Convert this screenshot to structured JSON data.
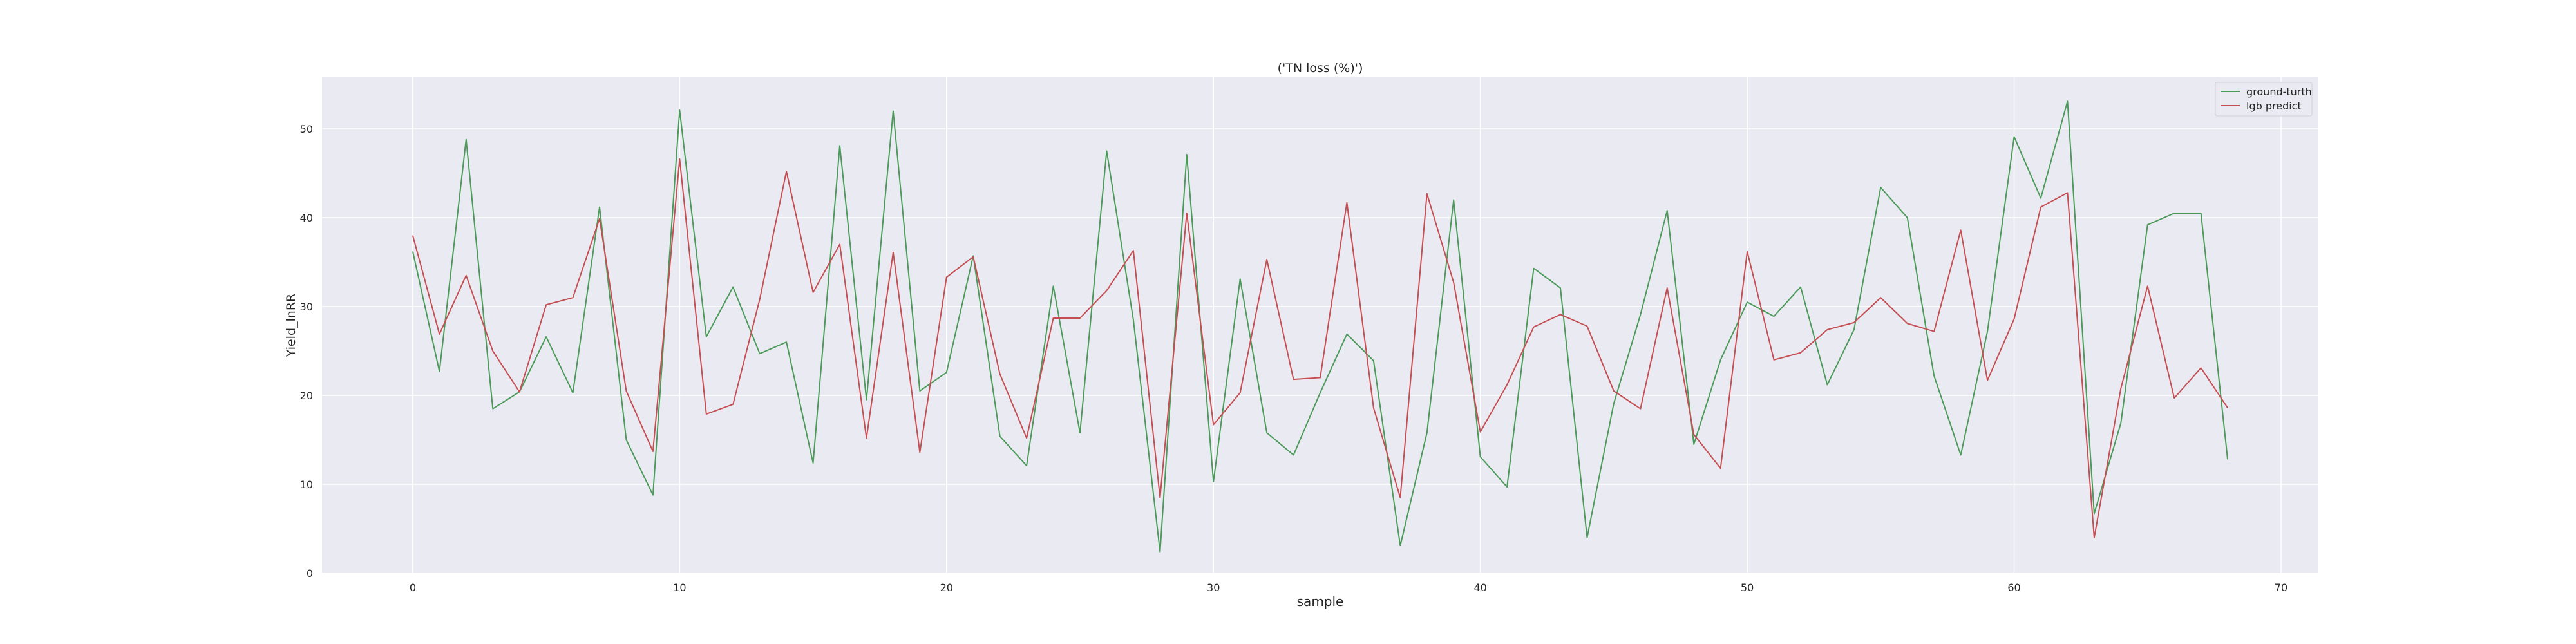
{
  "chart_data": {
    "type": "line",
    "title": "('TN loss (%)')",
    "xlabel": "sample",
    "ylabel": "Yield_lnRR",
    "xlim": [
      -3.4,
      71.4
    ],
    "ylim": [
      0,
      55.8
    ],
    "xticks": [
      0,
      10,
      20,
      30,
      40,
      50,
      60,
      70
    ],
    "yticks": [
      0,
      10,
      20,
      30,
      40,
      50
    ],
    "grid": true,
    "legend_position": "top-right",
    "x": [
      0,
      1,
      2,
      3,
      4,
      5,
      6,
      7,
      8,
      9,
      10,
      11,
      12,
      13,
      14,
      15,
      16,
      17,
      18,
      19,
      20,
      21,
      22,
      23,
      24,
      25,
      26,
      27,
      28,
      29,
      30,
      31,
      32,
      33,
      34,
      35,
      36,
      37,
      38,
      39,
      40,
      41,
      42,
      43,
      44,
      45,
      46,
      47,
      48,
      49,
      50,
      51,
      52,
      53,
      54,
      55,
      56,
      57,
      58,
      59,
      60,
      61,
      62,
      63,
      64,
      65,
      66,
      67,
      68
    ],
    "series": [
      {
        "name": "ground-turth",
        "color": "#4c9a5a",
        "values": [
          36.2,
          22.7,
          48.8,
          18.5,
          20.4,
          26.6,
          20.3,
          41.2,
          15.0,
          8.8,
          52.1,
          26.6,
          32.2,
          24.7,
          26.0,
          12.4,
          48.1,
          19.5,
          52.0,
          20.5,
          22.6,
          35.7,
          15.4,
          12.1,
          32.3,
          15.8,
          47.5,
          28.5,
          2.4,
          47.1,
          10.3,
          33.1,
          15.8,
          13.3,
          20.3,
          26.9,
          23.9,
          3.1,
          15.8,
          42.0,
          13.1,
          9.7,
          34.3,
          32.1,
          4.0,
          19.1,
          29.1,
          40.8,
          14.5,
          24.0,
          30.5,
          28.9,
          32.2,
          21.2,
          27.4,
          43.4,
          40.0,
          22.2,
          13.3,
          27.2,
          49.1,
          42.2,
          53.1,
          6.7,
          16.9,
          39.2,
          40.5,
          40.5,
          12.8
        ]
      },
      {
        "name": "lgb predict",
        "color": "#c44e52",
        "values": [
          38.0,
          26.9,
          33.5,
          25.0,
          20.4,
          30.2,
          31.0,
          39.9,
          20.5,
          13.7,
          46.6,
          17.9,
          19.0,
          30.8,
          45.2,
          31.6,
          37.0,
          15.2,
          36.1,
          13.6,
          33.3,
          35.6,
          22.4,
          15.2,
          28.7,
          28.7,
          31.8,
          36.3,
          8.5,
          40.5,
          16.7,
          20.3,
          35.3,
          21.8,
          22.0,
          41.7,
          18.6,
          8.5,
          42.7,
          32.7,
          15.9,
          21.2,
          27.7,
          29.1,
          27.8,
          20.5,
          18.5,
          32.1,
          15.6,
          11.8,
          36.2,
          24.0,
          24.8,
          27.4,
          28.2,
          31.0,
          28.1,
          27.2,
          38.6,
          21.7,
          28.6,
          41.2,
          42.8,
          4.0,
          20.8,
          32.3,
          19.7,
          23.1,
          18.6
        ]
      }
    ]
  }
}
